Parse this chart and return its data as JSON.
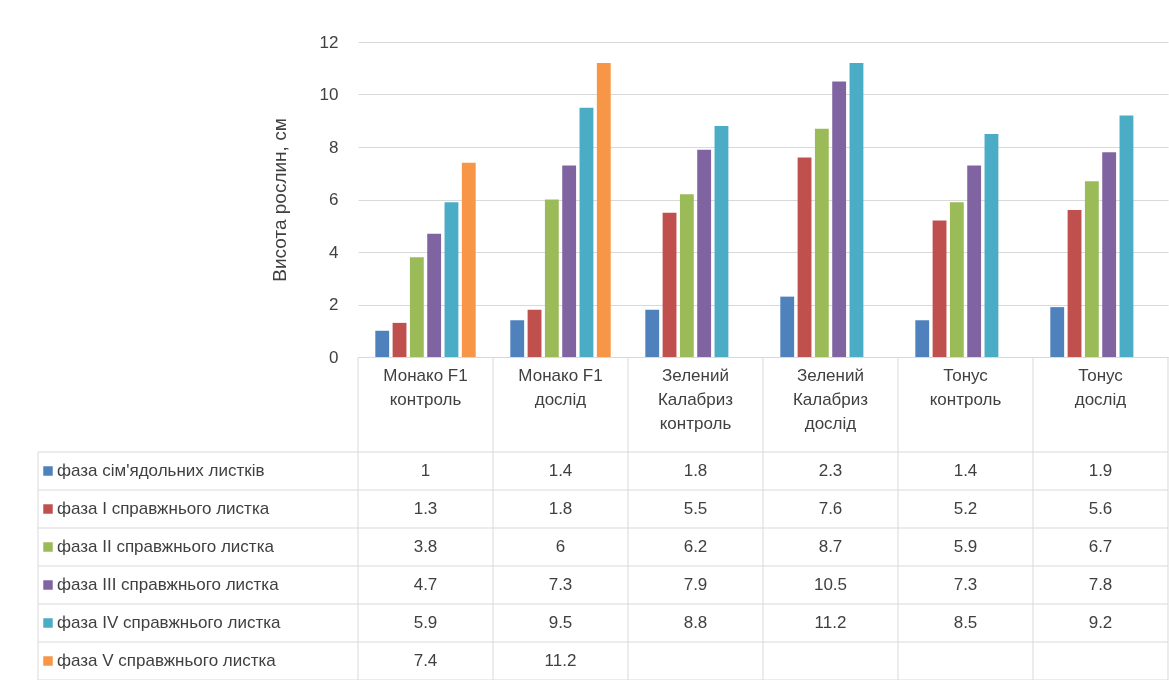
{
  "chart_data": {
    "type": "bar",
    "ylabel": "Висота рослин, см",
    "categories": [
      "Монако F1 контроль",
      "Монако F1 дослід",
      "Зелений Калабриз контроль",
      "Зелений Калабриз дослід",
      "Тонус контроль",
      "Тонус дослід"
    ],
    "series": [
      {
        "name": "фаза сім'ядольних листків",
        "color": "#4f81bd",
        "values": [
          1,
          1.4,
          1.8,
          2.3,
          1.4,
          1.9
        ]
      },
      {
        "name": "фаза I справжнього листка",
        "color": "#c0504d",
        "values": [
          1.3,
          1.8,
          5.5,
          7.6,
          5.2,
          5.6
        ]
      },
      {
        "name": "фаза II справжнього листка",
        "color": "#9bbb59",
        "values": [
          3.8,
          6,
          6.2,
          8.7,
          5.9,
          6.7
        ]
      },
      {
        "name": "фаза III справжнього листка",
        "color": "#8064a2",
        "values": [
          4.7,
          7.3,
          7.9,
          10.5,
          7.3,
          7.8
        ]
      },
      {
        "name": "фаза IV справжнього листка",
        "color": "#4bacc6",
        "values": [
          5.9,
          9.5,
          8.8,
          11.2,
          8.5,
          9.2
        ]
      },
      {
        "name": "фаза V справжнього листка",
        "color": "#f79646",
        "values": [
          7.4,
          11.2,
          null,
          null,
          null,
          null
        ]
      }
    ],
    "ylim": [
      0,
      12
    ],
    "yticks": [
      0,
      2,
      4,
      6,
      8,
      10,
      12
    ],
    "grid": "y",
    "legend": "bottom",
    "data_labels": true
  }
}
